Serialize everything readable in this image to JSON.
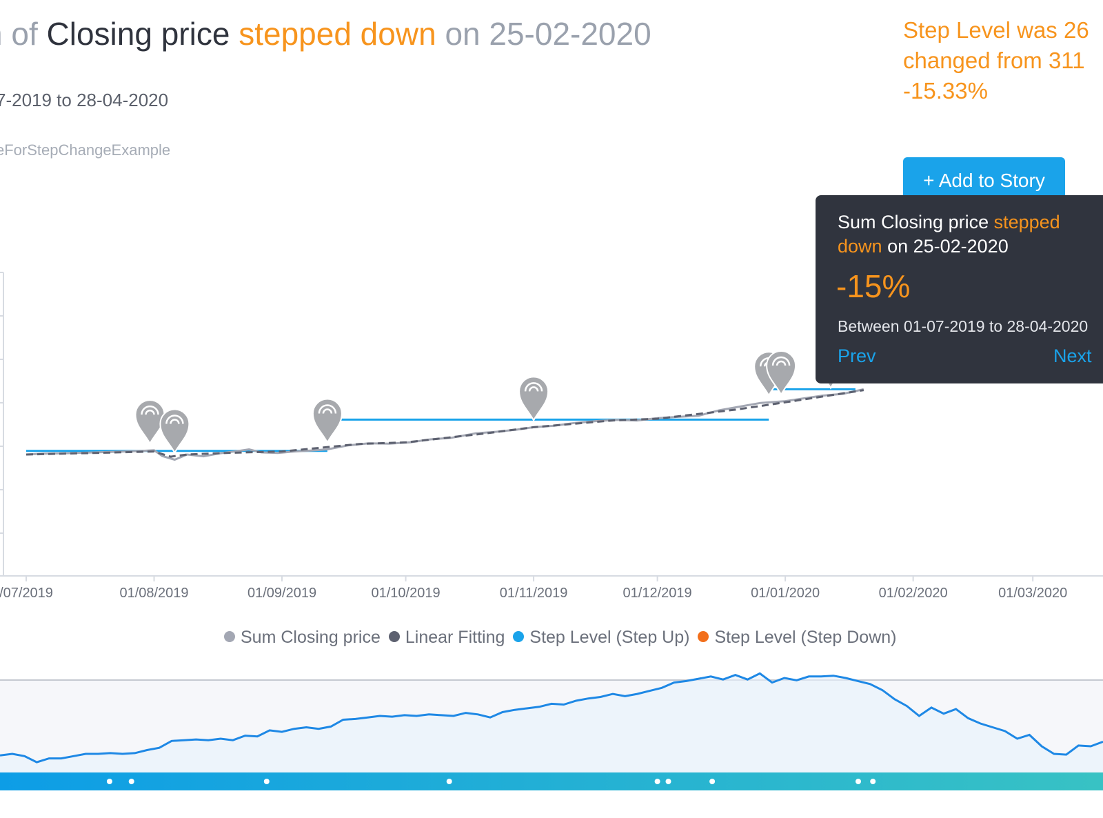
{
  "header": {
    "title_part1": "n of ",
    "title_part2": "Closing price",
    "title_part3": "stepped down",
    "title_part4": "on 25-02-2020",
    "date_range": "7-2019 to 28-04-2020",
    "dataset_name": "eForStepChangeExample"
  },
  "summary": {
    "line1": "Step Level was 26",
    "line2": "changed from 311",
    "line3": "-15.33%"
  },
  "add_story_label": "+ Add to Story",
  "tooltip": {
    "head_part1": "Sum Closing price",
    "head_part2": "stepped down",
    "head_part3": "on 25-02-2020",
    "pct": "-15%",
    "range": "Between 01-07-2019 to 28-04-2020",
    "prev_label": "Prev",
    "next_label": "Next"
  },
  "colors": {
    "closing": "#a3a7b3",
    "fitting": "#5d6170",
    "step_up": "#1aa3ea",
    "step_down": "#f26f1b",
    "accent": "#f7941d",
    "navigator": "#1e88e5"
  },
  "chart_data": {
    "type": "line",
    "x_tick_labels": [
      "/07/2019",
      "01/08/2019",
      "01/09/2019",
      "01/10/2019",
      "01/11/2019",
      "01/12/2019",
      "01/01/2020",
      "01/02/2020",
      "01/03/2020"
    ],
    "x_range": [
      "2019-07-01",
      "2020-03-13"
    ],
    "ylim": [
      0,
      100
    ],
    "grid": false,
    "legend": [
      "Sum Closing price",
      "Linear Fitting",
      "Step Level (Step Up)",
      "Step Level (Step Down)"
    ],
    "legend_position": "bottom",
    "series": [
      {
        "name": "Sum Closing price",
        "x": [
          "2019-07-01",
          "2019-07-05",
          "2019-07-10",
          "2019-07-15",
          "2019-07-20",
          "2019-07-25",
          "2019-07-29",
          "2019-08-01",
          "2019-08-03",
          "2019-08-06",
          "2019-08-09",
          "2019-08-13",
          "2019-08-17",
          "2019-08-21",
          "2019-08-24",
          "2019-08-27",
          "2019-08-31",
          "2019-09-04",
          "2019-09-08",
          "2019-09-12",
          "2019-09-17",
          "2019-09-22",
          "2019-09-27",
          "2019-10-02",
          "2019-10-07",
          "2019-10-12",
          "2019-10-18",
          "2019-10-23",
          "2019-10-28",
          "2019-11-01",
          "2019-11-06",
          "2019-11-11",
          "2019-11-16",
          "2019-11-21",
          "2019-11-26",
          "2019-12-01",
          "2019-12-06",
          "2019-12-11",
          "2019-12-16",
          "2019-12-21",
          "2019-12-26",
          "2020-01-01",
          "2020-01-05",
          "2020-01-10",
          "2020-01-15",
          "2020-01-20"
        ],
        "values": [
          40.0,
          40.3,
          40.4,
          40.6,
          40.8,
          41.0,
          41.2,
          41.4,
          39.5,
          38.3,
          40.0,
          39.4,
          40.4,
          41.1,
          41.7,
          40.7,
          40.5,
          41.0,
          41.3,
          41.7,
          43.0,
          43.7,
          43.6,
          44.0,
          45.0,
          45.5,
          47.0,
          47.5,
          48.2,
          49.0,
          49.5,
          50.4,
          51.0,
          51.4,
          51.2,
          52.0,
          52.4,
          52.8,
          54.6,
          55.8,
          57.0,
          57.6,
          58.4,
          59.4,
          60.0,
          61.5
        ]
      },
      {
        "name": "Linear Fitting",
        "x": [
          "2019-07-01",
          "2019-07-20",
          "2019-08-01",
          "2019-08-05",
          "2019-08-09",
          "2019-08-20",
          "2019-09-01",
          "2019-09-20",
          "2019-10-01",
          "2019-10-20",
          "2019-11-01",
          "2019-11-20",
          "2019-12-01",
          "2019-12-20",
          "2020-01-01",
          "2020-01-20"
        ],
        "values": [
          40.0,
          40.6,
          41.0,
          39.3,
          40.0,
          40.6,
          41.0,
          43.5,
          44.0,
          46.9,
          49.0,
          51.2,
          51.8,
          54.8,
          57.2,
          61.2
        ]
      },
      {
        "name": "Step Level (Step Up)",
        "segments": [
          {
            "from": "2019-07-01",
            "to": "2019-09-12",
            "value": 41.2
          },
          {
            "from": "2019-09-12",
            "to": "2019-12-28",
            "value": 51.5
          },
          {
            "from": "2019-12-28",
            "to": "2020-01-18",
            "value": 61.5
          }
        ]
      }
    ],
    "step_markers": [
      "2019-07-31",
      "2019-08-06",
      "2019-09-12",
      "2019-11-01",
      "2019-12-28",
      "2019-12-31",
      "2020-01-12"
    ],
    "navigator": {
      "x_range": [
        "2019-07-01",
        "2020-04-28"
      ],
      "values": [
        18,
        20,
        17,
        9,
        14,
        14,
        17,
        20,
        20,
        21,
        20,
        21,
        25,
        28,
        37,
        38,
        39,
        38,
        40,
        38,
        44,
        43,
        51,
        49,
        53,
        55,
        53,
        56,
        65,
        66,
        68,
        70,
        69,
        71,
        70,
        72,
        71,
        70,
        74,
        72,
        68,
        75,
        78,
        80,
        82,
        86,
        85,
        90,
        93,
        95,
        99,
        96,
        99,
        103,
        107,
        114,
        116,
        119,
        122,
        118,
        124,
        118,
        126,
        114,
        120,
        117,
        122,
        122,
        123,
        120,
        116,
        112,
        104,
        92,
        83,
        70,
        81,
        73,
        79,
        67,
        60,
        55,
        50,
        40,
        45,
        30,
        20,
        19,
        31,
        30,
        36
      ]
    }
  }
}
